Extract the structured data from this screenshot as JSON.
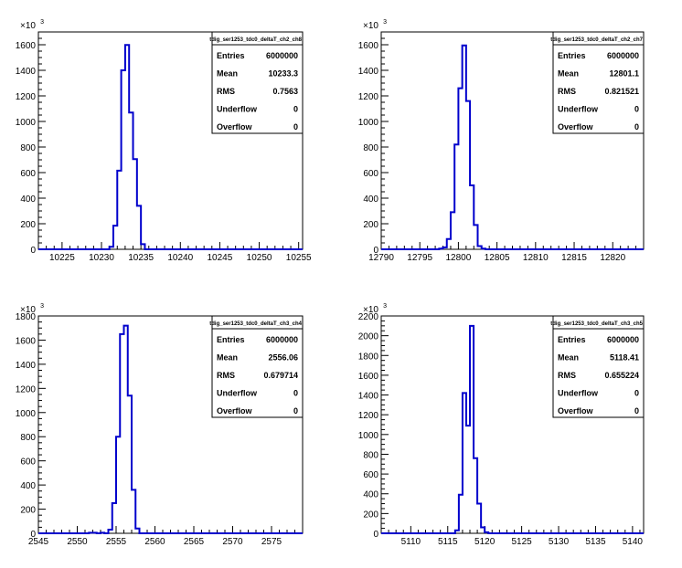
{
  "chart_data": [
    {
      "type": "histogram",
      "title": "tdig_ser1253_tdc0_deltaT_ch2_ch8",
      "xlim": [
        10222,
        10255.5
      ],
      "xticks": [
        10225,
        10230,
        10235,
        10240,
        10245,
        10250,
        10255
      ],
      "ylim": [
        0,
        1700
      ],
      "yticks": [
        0,
        200,
        400,
        600,
        800,
        1000,
        1200,
        1400,
        1600
      ],
      "yexponent": "x10^3",
      "bin_width": 0.5,
      "bins": [
        {
          "x": 10231.0,
          "y": 20
        },
        {
          "x": 10231.5,
          "y": 185
        },
        {
          "x": 10232.0,
          "y": 615
        },
        {
          "x": 10232.5,
          "y": 1400
        },
        {
          "x": 10233.0,
          "y": 1598
        },
        {
          "x": 10233.5,
          "y": 1070
        },
        {
          "x": 10234.0,
          "y": 705
        },
        {
          "x": 10234.5,
          "y": 340
        },
        {
          "x": 10235.0,
          "y": 40
        }
      ],
      "stats": {
        "rows": [
          {
            "label": "Entries",
            "value": "6000000"
          },
          {
            "label": "Mean",
            "value": "10233.3"
          },
          {
            "label": "RMS",
            "value": "0.7563"
          },
          {
            "label": "Underflow",
            "value": "0"
          },
          {
            "label": "Overflow",
            "value": "0"
          }
        ]
      }
    },
    {
      "type": "histogram",
      "title": "tdig_ser1253_tdc0_deltaT_ch2_ch7",
      "xlim": [
        12790,
        12824
      ],
      "xticks": [
        12790,
        12795,
        12800,
        12805,
        12810,
        12815,
        12820
      ],
      "ylim": [
        0,
        1700
      ],
      "yticks": [
        0,
        200,
        400,
        600,
        800,
        1000,
        1200,
        1400,
        1600
      ],
      "yexponent": "x10^3",
      "bin_width": 0.5,
      "bins": [
        {
          "x": 12797.5,
          "y": 5
        },
        {
          "x": 12798.0,
          "y": 15
        },
        {
          "x": 12798.5,
          "y": 80
        },
        {
          "x": 12799.0,
          "y": 290
        },
        {
          "x": 12799.5,
          "y": 820
        },
        {
          "x": 12800.0,
          "y": 1260
        },
        {
          "x": 12800.5,
          "y": 1595
        },
        {
          "x": 12801.0,
          "y": 1160
        },
        {
          "x": 12801.5,
          "y": 500
        },
        {
          "x": 12802.0,
          "y": 190
        },
        {
          "x": 12802.5,
          "y": 25
        },
        {
          "x": 12803.0,
          "y": 5
        }
      ],
      "stats": {
        "rows": [
          {
            "label": "Entries",
            "value": "6000000"
          },
          {
            "label": "Mean",
            "value": "12801.1"
          },
          {
            "label": "RMS",
            "value": "0.821521"
          },
          {
            "label": "Underflow",
            "value": "0"
          },
          {
            "label": "Overflow",
            "value": "0"
          }
        ]
      }
    },
    {
      "type": "histogram",
      "title": "tdig_ser1253_tdc0_deltaT_ch3_ch4",
      "xlim": [
        2545,
        2579
      ],
      "xticks": [
        2545,
        2550,
        2555,
        2560,
        2565,
        2570,
        2575
      ],
      "ylim": [
        0,
        1800
      ],
      "yticks": [
        0,
        200,
        400,
        600,
        800,
        1000,
        1200,
        1400,
        1600,
        1800
      ],
      "yexponent": "x10^3",
      "bin_width": 0.5,
      "bins": [
        {
          "x": 2551.5,
          "y": 5
        },
        {
          "x": 2552.0,
          "y": 5
        },
        {
          "x": 2553.0,
          "y": 5
        },
        {
          "x": 2554.0,
          "y": 30
        },
        {
          "x": 2554.5,
          "y": 250
        },
        {
          "x": 2555.0,
          "y": 800
        },
        {
          "x": 2555.5,
          "y": 1650
        },
        {
          "x": 2556.0,
          "y": 1720
        },
        {
          "x": 2556.5,
          "y": 1140
        },
        {
          "x": 2557.0,
          "y": 360
        },
        {
          "x": 2557.5,
          "y": 40
        }
      ],
      "stats": {
        "rows": [
          {
            "label": "Entries",
            "value": "6000000"
          },
          {
            "label": "Mean",
            "value": "2556.06"
          },
          {
            "label": "RMS",
            "value": "0.679714"
          },
          {
            "label": "Underflow",
            "value": "0"
          },
          {
            "label": "Overflow",
            "value": "0"
          }
        ]
      }
    },
    {
      "type": "histogram",
      "title": "tdig_ser1253_tdc0_deltaT_ch3_ch5",
      "xlim": [
        5106,
        5141.5
      ],
      "xticks": [
        5110,
        5115,
        5120,
        5125,
        5130,
        5135,
        5140
      ],
      "ylim": [
        0,
        2200
      ],
      "yticks": [
        0,
        200,
        400,
        600,
        800,
        1000,
        1200,
        1400,
        1600,
        1800,
        2000,
        2200
      ],
      "yexponent": "x10^3",
      "bin_width": 0.5,
      "bins": [
        {
          "x": 5116.0,
          "y": 30
        },
        {
          "x": 5116.5,
          "y": 390
        },
        {
          "x": 5117.0,
          "y": 1420
        },
        {
          "x": 5117.5,
          "y": 1090
        },
        {
          "x": 5118.0,
          "y": 2100
        },
        {
          "x": 5118.5,
          "y": 760
        },
        {
          "x": 5119.0,
          "y": 300
        },
        {
          "x": 5119.5,
          "y": 60
        },
        {
          "x": 5120.0,
          "y": 10
        }
      ],
      "stats": {
        "rows": [
          {
            "label": "Entries",
            "value": "6000000"
          },
          {
            "label": "Mean",
            "value": "5118.41"
          },
          {
            "label": "RMS",
            "value": "0.655224"
          },
          {
            "label": "Underflow",
            "value": "0"
          },
          {
            "label": "Overflow",
            "value": "0"
          }
        ]
      }
    }
  ],
  "colors": {
    "histogram_line": "#0000cc",
    "axis": "#000000",
    "background": "#ffffff"
  }
}
